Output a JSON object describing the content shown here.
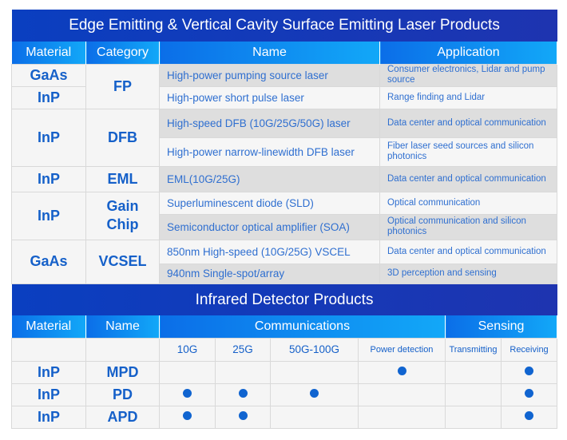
{
  "laser": {
    "title": "Edge Emitting & Vertical Cavity Surface Emitting Laser Products",
    "headers": [
      "Material",
      "Category",
      "Name",
      "Application"
    ],
    "rows": [
      {
        "material": "GaAs",
        "category": "FP",
        "name": "High-power pumping source laser",
        "application": "Consumer electronics, Lidar and pump source"
      },
      {
        "material": "InP",
        "name": "High-power short pulse laser",
        "application": "Range finding and Lidar"
      },
      {
        "material": "InP",
        "category": "DFB",
        "name": "High-speed DFB (10G/25G/50G)  laser",
        "application": "Data center and optical communication"
      },
      {
        "name": "High-power narrow-linewidth DFB laser",
        "application": "Fiber laser seed sources and silicon photonics"
      },
      {
        "material": "InP",
        "category": "EML",
        "name": "EML(10G/25G)",
        "application": "Data center and optical communication"
      },
      {
        "material": "InP",
        "category": "Gain Chip",
        "name": "Superluminescent diode (SLD)",
        "application": "Optical communication"
      },
      {
        "name": "Semiconductor optical amplifier (SOA)",
        "application": "Optical communication and silicon photonics"
      },
      {
        "material": "GaAs",
        "category": "VCSEL",
        "name": "850nm High-speed (10G/25G) VSCEL",
        "application": "Data center and optical communication"
      },
      {
        "name": "940nm Single-spot/array",
        "application": "3D perception and sensing"
      }
    ]
  },
  "detector": {
    "title": "Infrared Detector Products",
    "headers": [
      "Material",
      "Name",
      "Communications",
      "Sensing"
    ],
    "subheaders": [
      "10G",
      "25G",
      "50G-100G",
      "Power detection",
      "Transmitting",
      "Receiving"
    ],
    "rows": [
      {
        "material": "InP",
        "name": "MPD",
        "marks": [
          false,
          false,
          false,
          true,
          false,
          true
        ]
      },
      {
        "material": "InP",
        "name": "PD",
        "marks": [
          true,
          true,
          true,
          false,
          false,
          true
        ]
      },
      {
        "material": "InP",
        "name": "APD",
        "marks": [
          true,
          true,
          false,
          false,
          false,
          true
        ]
      }
    ]
  },
  "colors": {
    "accent": "#1064d0",
    "title_bg": "#1a3ab8"
  }
}
